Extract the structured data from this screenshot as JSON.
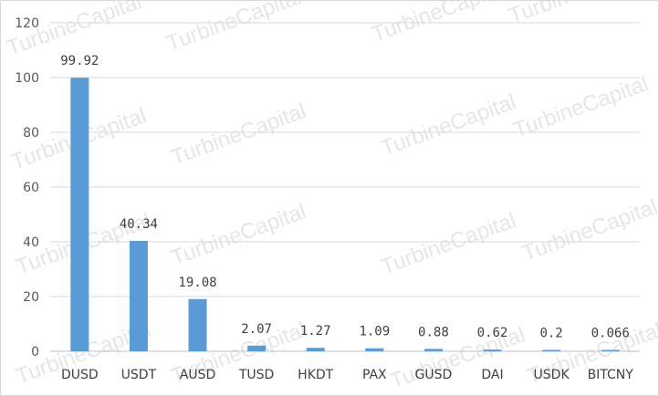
{
  "watermark_text": "TurbineCapital",
  "colors": {
    "bar": "#5b9bd5",
    "grid": "#d9d9d9",
    "axis": "#bfbfbf"
  },
  "chart_data": {
    "type": "bar",
    "title": "",
    "xlabel": "",
    "ylabel": "",
    "categories": [
      "DUSD",
      "USDT",
      "AUSD",
      "TUSD",
      "HKDT",
      "PAX",
      "GUSD",
      "DAI",
      "USDK",
      "BITCNY"
    ],
    "values": [
      99.92,
      40.34,
      19.08,
      2.07,
      1.27,
      1.09,
      0.88,
      0.62,
      0.2,
      0.066
    ],
    "data_labels": [
      "99.92",
      "40.34",
      "19.08",
      "2.07",
      "1.27",
      "1.09",
      "0.88",
      "0.62",
      "0.2",
      "0.066"
    ],
    "ylim": [
      0,
      120
    ],
    "yticks": [
      0,
      20,
      40,
      60,
      80,
      100,
      120
    ],
    "grid": true,
    "legend": "none"
  }
}
